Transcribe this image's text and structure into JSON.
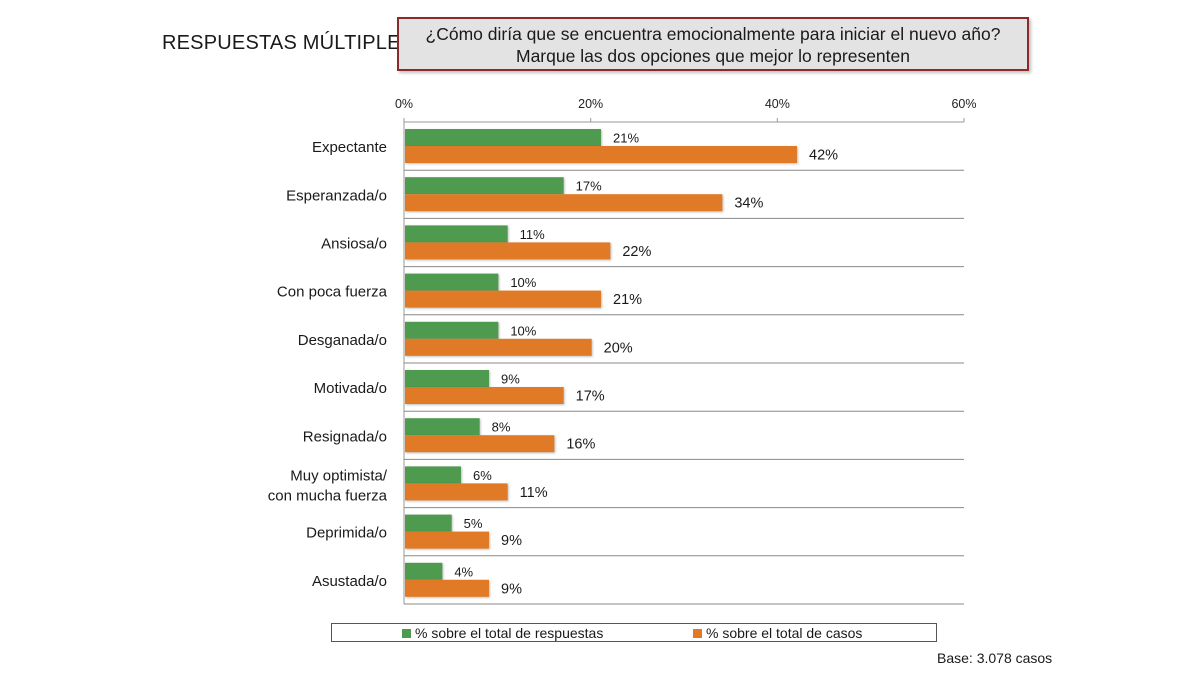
{
  "header": {
    "section_label": "RESPUESTAS MÚLTIPLES",
    "question_line1": "¿Cómo diría que se encuentra emocionalmente para iniciar el nuevo año?",
    "question_line2": "Marque las dos opciones que mejor lo representen"
  },
  "footer": {
    "base_note": "Base: 3.078 casos"
  },
  "chart_data": {
    "type": "bar",
    "orientation": "horizontal",
    "categories": [
      "Expectante",
      "Esperanzada/o",
      "Ansiosa/o",
      "Con poca fuerza",
      "Desganada/o",
      "Motivada/o",
      "Resignada/o",
      "Muy optimista/ con mucha fuerza",
      "Deprimida/o",
      "Asustada/o"
    ],
    "category_lines": [
      [
        "Expectante"
      ],
      [
        "Esperanzada/o"
      ],
      [
        "Ansiosa/o"
      ],
      [
        "Con poca fuerza"
      ],
      [
        "Desganada/o"
      ],
      [
        "Motivada/o"
      ],
      [
        "Resignada/o"
      ],
      [
        "Muy optimista/",
        "con mucha fuerza"
      ],
      [
        "Deprimida/o"
      ],
      [
        "Asustada/o"
      ]
    ],
    "series": [
      {
        "name": "% sobre el total de respuestas",
        "color": "#4e9a4e",
        "values": [
          21,
          17,
          11,
          10,
          10,
          9,
          8,
          6,
          5,
          4
        ],
        "labels": [
          "21%",
          "17%",
          "11%",
          "10%",
          "10%",
          "9%",
          "8%",
          "6%",
          "5%",
          "4%"
        ]
      },
      {
        "name": "% sobre el total de casos",
        "color": "#e07a26",
        "values": [
          42,
          34,
          22,
          21,
          20,
          17,
          16,
          11,
          9,
          9
        ],
        "labels": [
          "42%",
          "34%",
          "22%",
          "21%",
          "20%",
          "17%",
          "16%",
          "11%",
          "9%",
          "9%"
        ]
      }
    ],
    "xlim": [
      0,
      60
    ],
    "x_ticks": [
      0,
      20,
      40,
      60
    ],
    "x_tick_labels": [
      "0%",
      "20%",
      "40%",
      "60%"
    ],
    "x_axis_position": "top",
    "grid": "horizontal separators between categories",
    "legend_position": "bottom"
  }
}
